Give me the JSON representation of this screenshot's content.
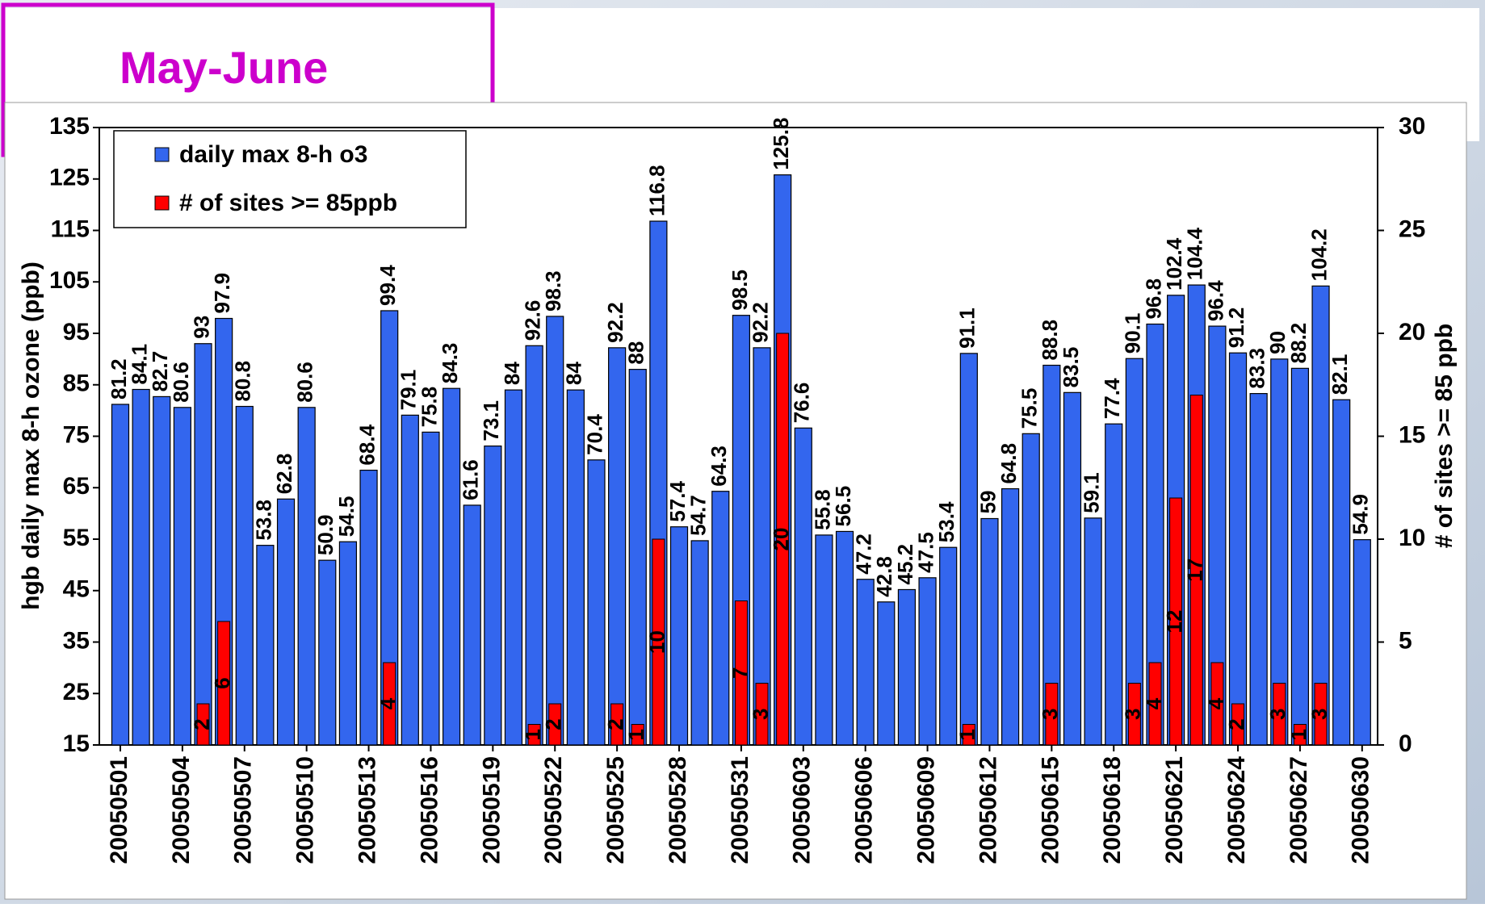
{
  "chart_data": {
    "type": "bar",
    "annotation": "May-June",
    "y_label": "hgb daily max 8-h ozone (ppb)",
    "y2_label": "# of sites >= 85 ppb",
    "legend": "top-left",
    "categories": [
      "20050501",
      null,
      null,
      "20050504",
      null,
      null,
      "20050507",
      null,
      null,
      "20050510",
      null,
      null,
      "20050513",
      null,
      null,
      "20050516",
      null,
      null,
      "20050519",
      null,
      null,
      "20050522",
      null,
      null,
      "20050525",
      null,
      null,
      "20050528",
      null,
      null,
      "20050531",
      null,
      null,
      "20050603",
      null,
      null,
      "20050606",
      null,
      null,
      "20050609",
      null,
      null,
      "20050612",
      null,
      null,
      "20050615",
      null,
      null,
      "20050618",
      null,
      null,
      "20050621",
      null,
      null,
      "20050624",
      null,
      null,
      "20050627",
      null,
      null,
      "20050630"
    ],
    "series": [
      {
        "name": "daily max 8-h o3",
        "color": "#3366ee",
        "values": [
          81.2,
          84.1,
          82.7,
          80.6,
          93,
          97.9,
          80.8,
          53.8,
          62.8,
          80.6,
          50.9,
          54.5,
          68.4,
          99.4,
          79.1,
          75.8,
          84.3,
          61.6,
          73.1,
          84,
          92.6,
          98.3,
          84,
          70.4,
          92.2,
          88,
          116.8,
          57.4,
          54.7,
          64.3,
          98.5,
          92.2,
          125.8,
          76.6,
          55.8,
          56.5,
          47.2,
          42.8,
          45.2,
          47.5,
          53.4,
          91.1,
          59,
          64.8,
          75.5,
          88.8,
          83.5,
          59.1,
          77.4,
          90.1,
          96.8,
          102.4,
          104.4,
          96.4,
          91.2,
          83.3,
          90,
          88.2,
          104.2,
          82.1,
          54.9
        ]
      },
      {
        "name": "# of sites >= 85ppb",
        "color": "#ff0000",
        "axis": "y2",
        "values": [
          0,
          0,
          0,
          0,
          2,
          6,
          0,
          0,
          0,
          0,
          0,
          0,
          0,
          4,
          0,
          0,
          0,
          0,
          0,
          0,
          1,
          2,
          0,
          0,
          2,
          1,
          10,
          0,
          0,
          0,
          7,
          3,
          20,
          0,
          0,
          0,
          0,
          0,
          0,
          0,
          0,
          1,
          0,
          0,
          0,
          3,
          0,
          0,
          0,
          3,
          4,
          12,
          17,
          4,
          2,
          0,
          3,
          1,
          3,
          0,
          0
        ]
      }
    ],
    "ylim": [
      15,
      135
    ],
    "yticks": [
      15,
      25,
      35,
      45,
      55,
      65,
      75,
      85,
      95,
      105,
      115,
      125,
      135
    ],
    "y2lim": [
      0,
      30
    ],
    "y2ticks": [
      0,
      5,
      10,
      15,
      20,
      25,
      30
    ]
  }
}
